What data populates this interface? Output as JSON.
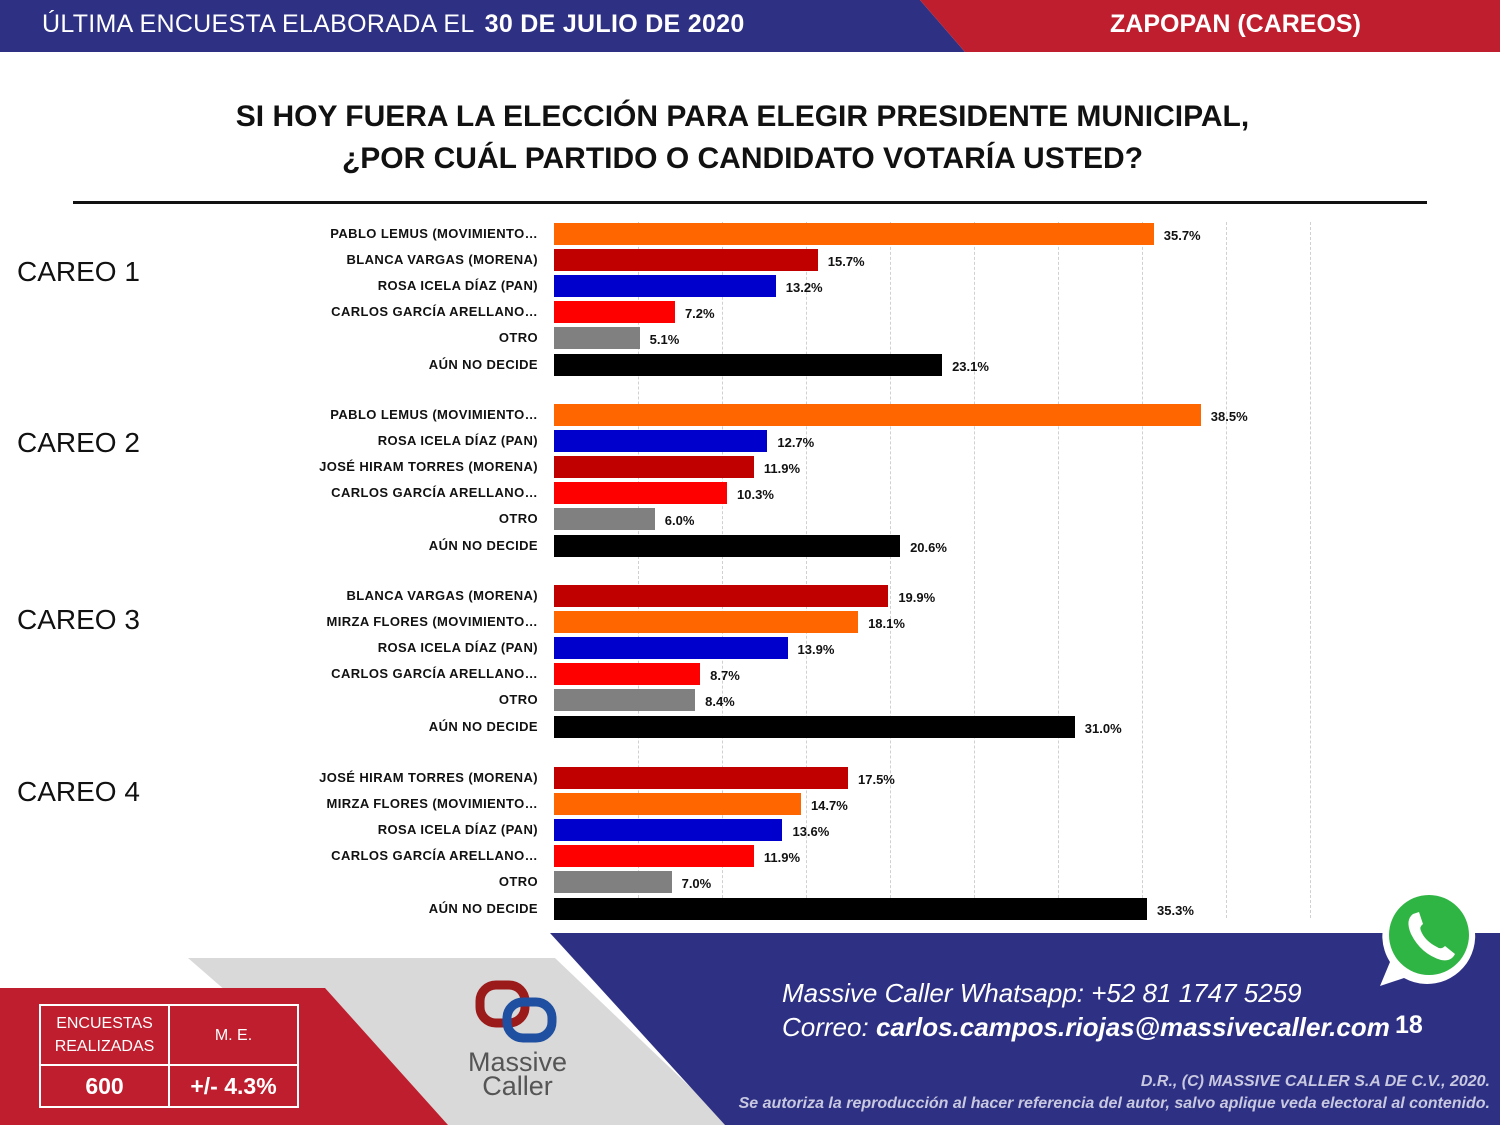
{
  "header": {
    "survey_label": "ÚLTIMA ENCUESTA ELABORADA EL",
    "survey_date": "30 DE JULIO DE 2020",
    "location": "ZAPOPAN (CAREOS)"
  },
  "title_line1": "SI HOY FUERA LA ELECCIÓN PARA ELEGIR PRESIDENTE MUNICIPAL,",
  "title_line2": "¿POR CUÁL PARTIDO O CANDIDATO VOTARÍA USTED?",
  "colors": {
    "movimiento_ciudadano": "#FF6600",
    "morena": "#C00000",
    "pan": "#0000CC",
    "other_candidate": "#FF0000",
    "otro": "#808080",
    "aun_no_decide": "#000000",
    "header_blue": "#2E3183",
    "header_red": "#BE1E2D"
  },
  "chart_data": {
    "type": "bar",
    "orientation": "horizontal",
    "xlim": [
      0,
      45
    ],
    "grid": true,
    "value_format": "percent",
    "groups": [
      {
        "name": "CAREO 1",
        "categories": [
          "PABLO LEMUS (MOVIMIENTO…",
          "BLANCA VARGAS (MORENA)",
          "ROSA ICELA DÍAZ (PAN)",
          "CARLOS GARCÍA ARELLANO…",
          "OTRO",
          "AÚN NO DECIDE"
        ],
        "values": [
          35.7,
          15.7,
          13.2,
          7.2,
          5.1,
          23.1
        ],
        "colors": [
          "#FF6600",
          "#C00000",
          "#0000CC",
          "#FF0000",
          "#808080",
          "#000000"
        ]
      },
      {
        "name": "CAREO 2",
        "categories": [
          "PABLO LEMUS (MOVIMIENTO…",
          "ROSA ICELA DÍAZ (PAN)",
          "JOSÉ HIRAM TORRES (MORENA)",
          "CARLOS GARCÍA ARELLANO…",
          "OTRO",
          "AÚN NO DECIDE"
        ],
        "values": [
          38.5,
          12.7,
          11.9,
          10.3,
          6.0,
          20.6
        ],
        "colors": [
          "#FF6600",
          "#0000CC",
          "#C00000",
          "#FF0000",
          "#808080",
          "#000000"
        ]
      },
      {
        "name": "CAREO 3",
        "categories": [
          "BLANCA VARGAS (MORENA)",
          "MIRZA FLORES (MOVIMIENTO…",
          "ROSA ICELA DÍAZ (PAN)",
          "CARLOS GARCÍA ARELLANO…",
          "OTRO",
          "AÚN NO DECIDE"
        ],
        "values": [
          19.9,
          18.1,
          13.9,
          8.7,
          8.4,
          31.0
        ],
        "colors": [
          "#C00000",
          "#FF6600",
          "#0000CC",
          "#FF0000",
          "#808080",
          "#000000"
        ]
      },
      {
        "name": "CAREO 4",
        "categories": [
          "JOSÉ HIRAM TORRES (MORENA)",
          "MIRZA FLORES (MOVIMIENTO…",
          "ROSA ICELA DÍAZ (PAN)",
          "CARLOS GARCÍA ARELLANO…",
          "OTRO",
          "AÚN NO DECIDE"
        ],
        "values": [
          17.5,
          14.7,
          13.6,
          11.9,
          7.0,
          35.3
        ],
        "colors": [
          "#C00000",
          "#FF6600",
          "#0000CC",
          "#FF0000",
          "#808080",
          "#000000"
        ]
      }
    ]
  },
  "stats": {
    "surveys_label_1": "ENCUESTAS",
    "surveys_label_2": "REALIZADAS",
    "surveys_value": "600",
    "me_label": "M. E.",
    "me_value": "+/- 4.3%"
  },
  "logo": {
    "line1": "Massive",
    "line2": "Caller"
  },
  "contact": {
    "whatsapp_label": "Massive Caller Whatsapp:",
    "whatsapp_number": "+52  81 1747 5259",
    "email_label": "Correo:",
    "email": "carlos.campos.riojas@massivecaller.com"
  },
  "page_number": "18",
  "legal_1": "D.R., (C) MASSIVE CALLER S.A DE C.V., 2020.",
  "legal_2": "Se autoriza la reproducción al hacer referencia del autor, salvo aplique veda electoral al contenido."
}
